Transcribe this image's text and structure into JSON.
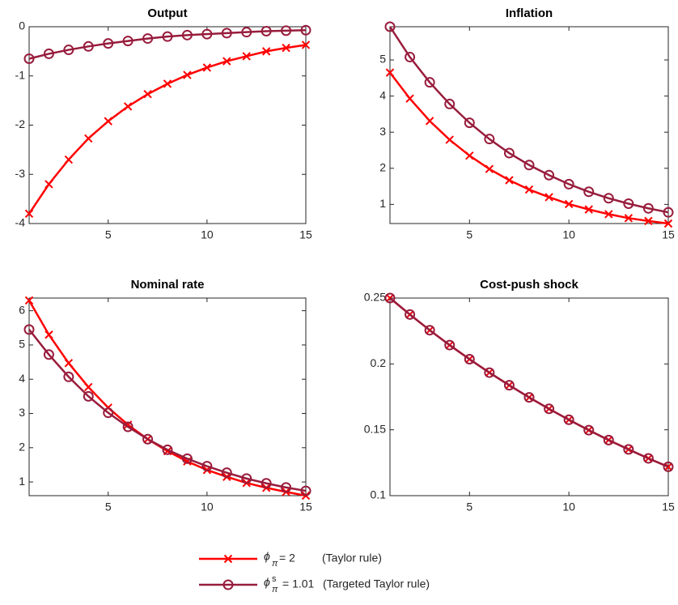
{
  "chart_data": [
    {
      "type": "line",
      "title": "Output",
      "x": [
        1,
        2,
        3,
        4,
        5,
        6,
        7,
        8,
        9,
        10,
        11,
        12,
        13,
        14,
        15
      ],
      "xlim": [
        1,
        15
      ],
      "xticks": [
        5,
        10,
        15
      ],
      "ylim": [
        -4,
        0
      ],
      "yticks": [
        -4,
        -3,
        -2,
        -1,
        0
      ],
      "series": [
        {
          "color": "#ff0000",
          "marker": "x",
          "values": [
            -3.8,
            -3.2,
            -2.7,
            -2.27,
            -1.92,
            -1.62,
            -1.37,
            -1.16,
            -0.98,
            -0.83,
            -0.7,
            -0.6,
            -0.5,
            -0.43,
            -0.37
          ]
        },
        {
          "color": "#981c3c",
          "marker": "o",
          "values": [
            -0.65,
            -0.55,
            -0.47,
            -0.4,
            -0.34,
            -0.29,
            -0.24,
            -0.2,
            -0.17,
            -0.15,
            -0.13,
            -0.11,
            -0.09,
            -0.08,
            -0.07
          ]
        }
      ]
    },
    {
      "type": "line",
      "title": "Inflation",
      "x": [
        1,
        2,
        3,
        4,
        5,
        6,
        7,
        8,
        9,
        10,
        11,
        12,
        13,
        14,
        15
      ],
      "xlim": [
        1,
        15
      ],
      "xticks": [
        5,
        10,
        15
      ],
      "ylim": [
        0.47,
        5.92
      ],
      "yticks": [
        1,
        2,
        3,
        4,
        5
      ],
      "series": [
        {
          "color": "#ff0000",
          "marker": "x",
          "values": [
            4.65,
            3.93,
            3.31,
            2.79,
            2.35,
            1.98,
            1.67,
            1.41,
            1.2,
            1.01,
            0.86,
            0.73,
            0.62,
            0.54,
            0.47
          ]
        },
        {
          "color": "#981c3c",
          "marker": "o",
          "values": [
            5.92,
            5.08,
            4.38,
            3.78,
            3.26,
            2.81,
            2.42,
            2.09,
            1.81,
            1.56,
            1.35,
            1.17,
            1.02,
            0.89,
            0.78
          ]
        }
      ]
    },
    {
      "type": "line",
      "title": "Nominal rate",
      "x": [
        1,
        2,
        3,
        4,
        5,
        6,
        7,
        8,
        9,
        10,
        11,
        12,
        13,
        14,
        15
      ],
      "xlim": [
        1,
        15
      ],
      "xticks": [
        5,
        10,
        15
      ],
      "ylim": [
        0.6,
        6.37
      ],
      "yticks": [
        1,
        2,
        3,
        4,
        5,
        6
      ],
      "series": [
        {
          "color": "#ff0000",
          "marker": "x",
          "values": [
            6.3,
            5.3,
            4.47,
            3.77,
            3.17,
            2.67,
            2.25,
            1.9,
            1.6,
            1.35,
            1.15,
            0.97,
            0.83,
            0.71,
            0.6
          ]
        },
        {
          "color": "#981c3c",
          "marker": "o",
          "values": [
            5.45,
            4.72,
            4.07,
            3.5,
            3.02,
            2.61,
            2.25,
            1.94,
            1.68,
            1.46,
            1.27,
            1.1,
            0.96,
            0.84,
            0.74
          ]
        }
      ]
    },
    {
      "type": "line",
      "title": "Cost-push shock",
      "x": [
        1,
        2,
        3,
        4,
        5,
        6,
        7,
        8,
        9,
        10,
        11,
        12,
        13,
        14,
        15
      ],
      "xlim": [
        1,
        15
      ],
      "xticks": [
        5,
        10,
        15
      ],
      "ylim": [
        0.1,
        0.25
      ],
      "yticks": [
        0.1,
        0.15,
        0.2,
        0.25
      ],
      "series": [
        {
          "color": "#ff0000",
          "marker": "x",
          "values": [
            0.25,
            0.2375,
            0.2256,
            0.2143,
            0.2036,
            0.1934,
            0.1838,
            0.1746,
            0.1659,
            0.1576,
            0.1497,
            0.1422,
            0.1351,
            0.1283,
            0.1219
          ]
        },
        {
          "color": "#981c3c",
          "marker": "o",
          "values": [
            0.25,
            0.2375,
            0.2256,
            0.2143,
            0.2036,
            0.1934,
            0.1838,
            0.1746,
            0.1659,
            0.1576,
            0.1497,
            0.1422,
            0.1351,
            0.1283,
            0.1219
          ]
        }
      ]
    }
  ],
  "legend": [
    {
      "symbol": "ϕ",
      "subscript": "π",
      "value": "= 2",
      "note": "(Taylor rule)"
    },
    {
      "symbol": "ϕ",
      "superscript": "s",
      "subscript": "π",
      "value": "= 1.01",
      "note": "(Targeted Taylor rule)"
    }
  ]
}
